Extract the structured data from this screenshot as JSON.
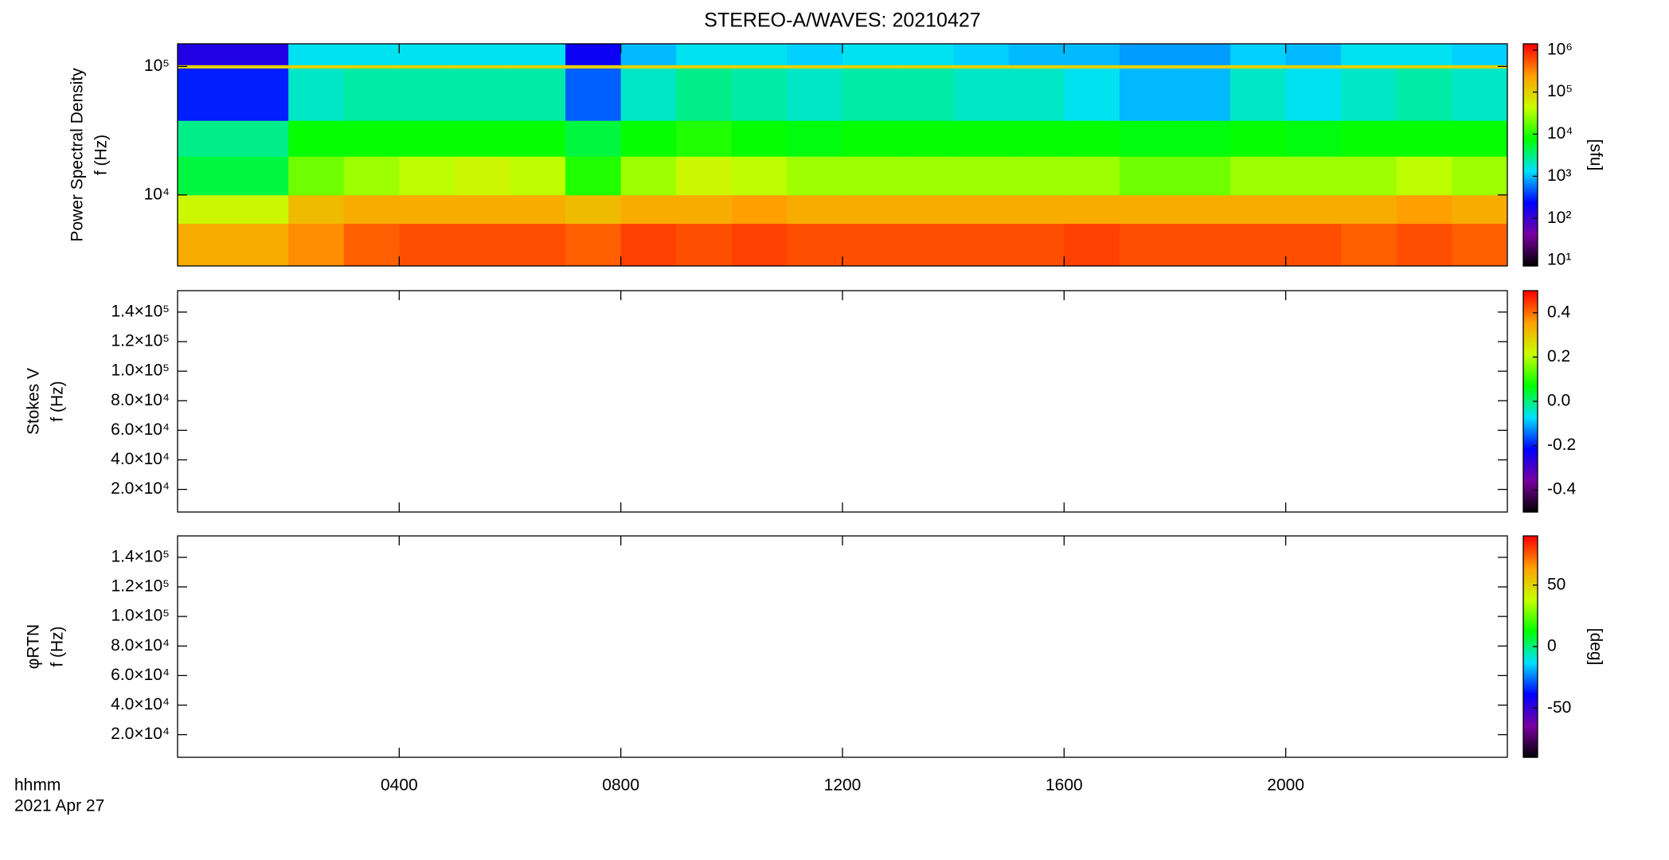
{
  "chart_data": [
    {
      "type": "heatmap",
      "title": "STEREO-A/WAVES: 20210427",
      "ylabel": [
        "Power Spectral Density",
        "f (Hz)"
      ],
      "clabel": "[sfu]",
      "xlim": [
        0,
        24
      ],
      "xticks": [
        4,
        8,
        12,
        16,
        20
      ],
      "ylim": [
        2800,
        150000
      ],
      "ylog": true,
      "yticks": [
        {
          "value": 10000,
          "label": "10⁴"
        },
        {
          "value": 100000,
          "label": "10⁵"
        }
      ],
      "clim": [
        7.4,
        1400000
      ],
      "clog": true,
      "cticks": [
        {
          "value": 10,
          "label": "10¹"
        },
        {
          "value": 100,
          "label": "10²"
        },
        {
          "value": 1000,
          "label": "10³"
        },
        {
          "value": 10000,
          "label": "10⁴"
        },
        {
          "value": 100000,
          "label": "10⁵"
        },
        {
          "value": 1000000,
          "label": "10⁶"
        }
      ],
      "colormap": [
        "#000000",
        "#7a00a0",
        "#0000ff",
        "#00e0ff",
        "#00ff00",
        "#c8ff00",
        "#ffa000",
        "#ff0000"
      ],
      "xbins": [
        0,
        1,
        2,
        3,
        4,
        5,
        6,
        7,
        8,
        9,
        10,
        11,
        12,
        13,
        14,
        15,
        16,
        17,
        18,
        19,
        20,
        21,
        22,
        23,
        24
      ],
      "ybins": [
        2800,
        6000,
        10000,
        20000,
        38000,
        97000,
        103000,
        150000
      ],
      "z": [
        [
          200000,
          200000,
          300000,
          500000,
          600000,
          600000,
          600000,
          500000,
          700000,
          600000,
          700000,
          600000,
          600000,
          600000,
          600000,
          600000,
          700000,
          600000,
          600000,
          600000,
          600000,
          500000,
          600000,
          500000
        ],
        [
          50000,
          50000,
          150000,
          200000,
          200000,
          200000,
          200000,
          150000,
          200000,
          200000,
          250000,
          200000,
          200000,
          200000,
          200000,
          200000,
          200000,
          200000,
          200000,
          200000,
          200000,
          200000,
          250000,
          200000
        ],
        [
          5000,
          5000,
          20000,
          30000,
          40000,
          50000,
          40000,
          10000,
          30000,
          50000,
          40000,
          30000,
          30000,
          30000,
          30000,
          30000,
          30000,
          20000,
          20000,
          30000,
          30000,
          30000,
          40000,
          30000
        ],
        [
          3000,
          3000,
          8000,
          8000,
          8000,
          8000,
          8000,
          5000,
          8000,
          10000,
          8000,
          7000,
          8000,
          8000,
          8000,
          8000,
          8000,
          7000,
          7000,
          8000,
          7000,
          8000,
          8000,
          8000
        ],
        [
          300,
          300,
          2000,
          2500,
          2500,
          2500,
          2500,
          500,
          2000,
          3000,
          2500,
          2000,
          2500,
          2500,
          2000,
          2000,
          1500,
          1000,
          1000,
          2000,
          1500,
          2000,
          2500,
          2000
        ],
        [
          100000,
          100000,
          100000,
          100000,
          100000,
          100000,
          100000,
          100000,
          100000,
          100000,
          100000,
          100000,
          100000,
          100000,
          100000,
          100000,
          100000,
          100000,
          100000,
          100000,
          100000,
          100000,
          100000,
          100000
        ],
        [
          150,
          150,
          1500,
          1500,
          1500,
          1500,
          1500,
          200,
          1000,
          1500,
          1500,
          1200,
          1500,
          1500,
          1200,
          1000,
          1000,
          800,
          800,
          1200,
          1000,
          1500,
          1500,
          1200
        ]
      ]
    },
    {
      "type": "heatmap",
      "ylabel": [
        "Stokes V",
        "f (Hz)"
      ],
      "xlim": [
        0,
        24
      ],
      "xticks": [
        4,
        8,
        12,
        16,
        20
      ],
      "ylim": [
        4700,
        154500
      ],
      "yticks": [
        {
          "value": 20000,
          "label": "2.0×10⁴"
        },
        {
          "value": 40000,
          "label": "4.0×10⁴"
        },
        {
          "value": 60000,
          "label": "6.0×10⁴"
        },
        {
          "value": 80000,
          "label": "8.0×10⁴"
        },
        {
          "value": 100000,
          "label": "1.0×10⁵"
        },
        {
          "value": 120000,
          "label": "1.2×10⁵"
        },
        {
          "value": 140000,
          "label": "1.4×10⁵"
        }
      ],
      "clim": [
        -0.5,
        0.5
      ],
      "cticks": [
        -0.4,
        -0.2,
        {
          "value": 0,
          "label": "0.0"
        },
        0.2,
        0.4
      ],
      "colormap": [
        "#000000",
        "#7a00a0",
        "#0000ff",
        "#00e0ff",
        "#00ff00",
        "#c8ff00",
        "#ffa000",
        "#ff0000"
      ]
    },
    {
      "type": "heatmap",
      "ylabel": [
        "φRTN",
        "f (Hz)"
      ],
      "clabel": "[deg]",
      "xlabel": [
        "hhmm",
        "2021 Apr 27"
      ],
      "xlim": [
        0,
        24
      ],
      "xticks": [
        {
          "value": 4,
          "label": "0400"
        },
        {
          "value": 8,
          "label": "0800"
        },
        {
          "value": 12,
          "label": "1200"
        },
        {
          "value": 16,
          "label": "1600"
        },
        {
          "value": 20,
          "label": "2000"
        }
      ],
      "ylim": [
        4700,
        154500
      ],
      "yticks": [
        {
          "value": 20000,
          "label": "2.0×10⁴"
        },
        {
          "value": 40000,
          "label": "4.0×10⁴"
        },
        {
          "value": 60000,
          "label": "6.0×10⁴"
        },
        {
          "value": 80000,
          "label": "8.0×10⁴"
        },
        {
          "value": 100000,
          "label": "1.0×10⁵"
        },
        {
          "value": 120000,
          "label": "1.2×10⁵"
        },
        {
          "value": 140000,
          "label": "1.4×10⁵"
        }
      ],
      "clim": [
        -90,
        90
      ],
      "cticks": [
        -50,
        0,
        50
      ],
      "colormap": [
        "#000000",
        "#7a00a0",
        "#0000ff",
        "#00e0ff",
        "#00ff00",
        "#c8ff00",
        "#ffa000",
        "#ff0000"
      ]
    }
  ]
}
